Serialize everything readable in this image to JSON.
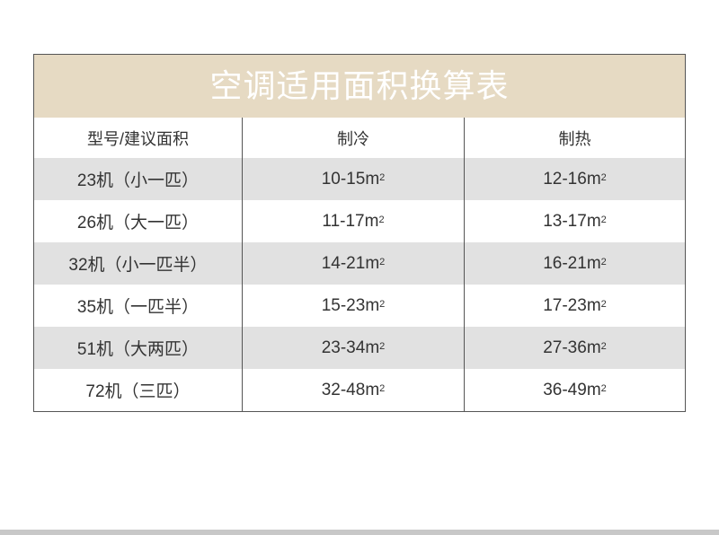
{
  "title": "空调适用面积换算表",
  "headers": [
    "型号/建议面积",
    "制冷",
    "制热"
  ],
  "unit_sup": "2",
  "rows": [
    {
      "model": "23机（小一匹）",
      "cooling": "10-15m",
      "heating": "12-16m"
    },
    {
      "model": "26机（大一匹）",
      "cooling": "11-17m",
      "heating": "13-17m"
    },
    {
      "model": "32机（小一匹半）",
      "cooling": "14-21m",
      "heating": "16-21m"
    },
    {
      "model": "35机（一匹半）",
      "cooling": "15-23m",
      "heating": "17-23m"
    },
    {
      "model": "51机（大两匹）",
      "cooling": "23-34m",
      "heating": "27-36m"
    },
    {
      "model": "72机（三匹）",
      "cooling": "32-48m",
      "heating": "36-49m"
    }
  ],
  "colors": {
    "title_band": "#e6dac3",
    "stripe": "#e1e1e1",
    "border": "#555555"
  }
}
